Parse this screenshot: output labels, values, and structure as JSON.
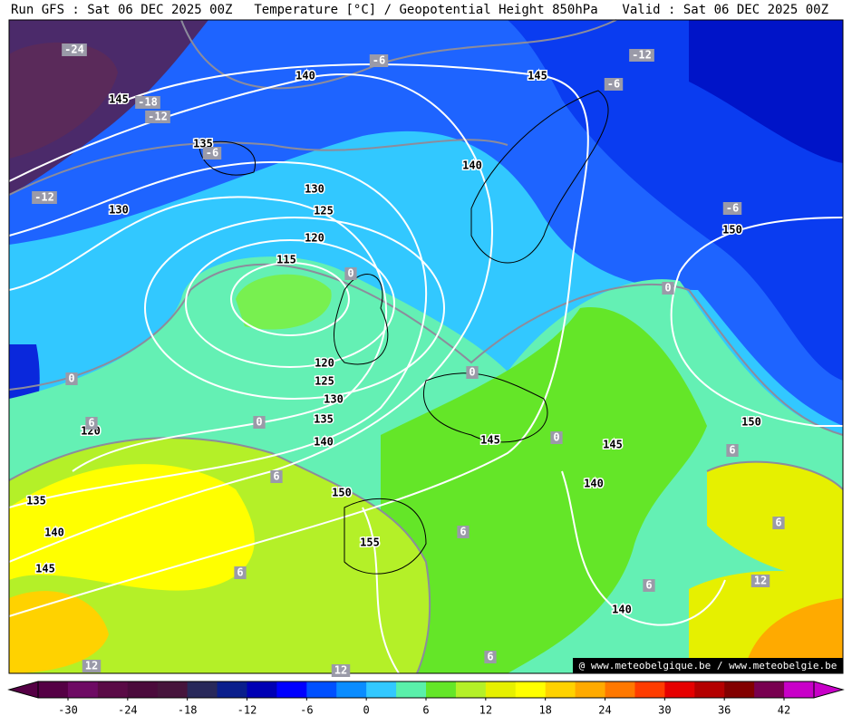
{
  "header": {
    "left": "Run GFS : Sat 06 DEC 2025 00Z",
    "center": "Temperature [°C] / Geopotential Height 850hPa",
    "right": "Valid : Sat 06 DEC 2025 00Z"
  },
  "height_labels": [
    140,
    145,
    145,
    135,
    140,
    130,
    130,
    125,
    120,
    115,
    150,
    120,
    125,
    130,
    135,
    140,
    120,
    145,
    145,
    150,
    140,
    150,
    135,
    140,
    155,
    145,
    140
  ],
  "temperature_labels": [
    -24,
    -18,
    -12,
    -6,
    -12,
    -6,
    -12,
    -6,
    -6,
    0,
    0,
    0,
    0,
    6,
    0,
    0,
    6,
    6,
    6,
    6,
    6,
    12,
    6,
    6,
    12,
    12
  ],
  "colorbar": {
    "ticks": [
      -30,
      -24,
      -18,
      -12,
      -6,
      0,
      6,
      12,
      18,
      24,
      30,
      36,
      42
    ],
    "colors": [
      "#550045",
      "#6e0a64",
      "#5a0a46",
      "#4b0a3c",
      "#46143c",
      "#28285a",
      "#0a1e8c",
      "#0000b4",
      "#0000ff",
      "#0050ff",
      "#0a8cff",
      "#32c8ff",
      "#5af0aa",
      "#64e628",
      "#b4f028",
      "#e6f000",
      "#ffff00",
      "#ffd200",
      "#ffaa00",
      "#ff7800",
      "#ff3c00",
      "#e60000",
      "#b40000",
      "#820000",
      "#780050",
      "#c800c8"
    ]
  },
  "credit": "@ www.meteobelgique.be / www.meteobelgie.be"
}
